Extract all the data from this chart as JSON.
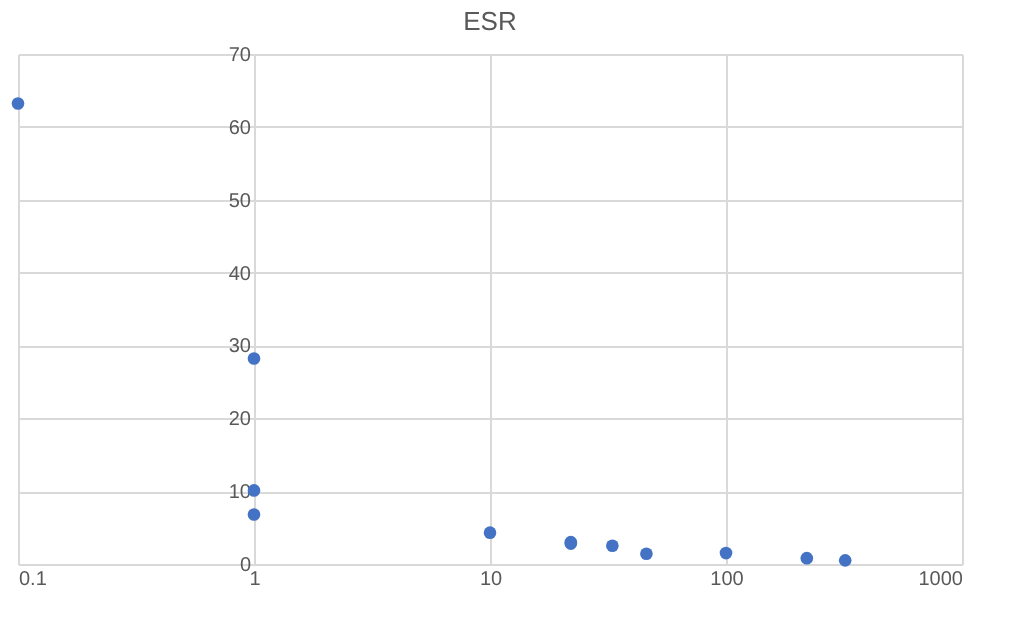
{
  "chart_data": {
    "type": "scatter",
    "title": "ESR",
    "x": [
      0.1,
      1,
      1,
      1,
      10,
      22,
      22,
      33,
      46,
      100,
      220,
      320
    ],
    "series": [
      {
        "color": "#4472c4",
        "values": [
          63.2,
          28.2,
          10.1,
          6.8,
          4.3,
          3.0,
          2.8,
          2.5,
          1.4,
          1.5,
          0.8,
          0.5
        ]
      }
    ],
    "log": "x",
    "xlim": [
      0.1,
      1000
    ],
    "xticks": [
      0.1,
      1,
      10,
      100,
      1000
    ],
    "ylim": [
      0,
      70
    ],
    "yticks": [
      0,
      10,
      20,
      30,
      40,
      50,
      60,
      70
    ],
    "grid": true,
    "marker": "circle"
  }
}
